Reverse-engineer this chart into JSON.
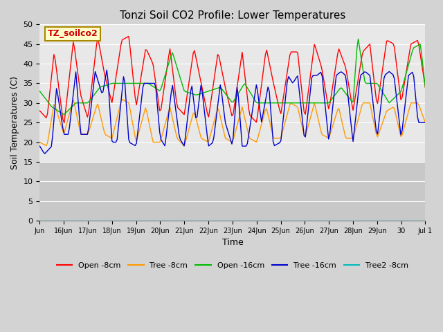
{
  "title": "Tonzi Soil CO2 Profile: Lower Temperatures",
  "xlabel": "Time",
  "ylabel": "Soil Temperatures (C)",
  "ylim": [
    0,
    50
  ],
  "yticks": [
    0,
    5,
    10,
    15,
    20,
    25,
    30,
    35,
    40,
    45,
    50
  ],
  "background_color": "#d3d3d3",
  "plot_bg_color": "#e8e8e8",
  "plot_bg_color2": "#c8c8c8",
  "text_box_label": "TZ_soilco2",
  "text_box_color": "#ffffcc",
  "text_box_text_color": "#cc0000",
  "legend_entries": [
    "Open -8cm",
    "Tree -8cm",
    "Open -16cm",
    "Tree -16cm",
    "Tree2 -8cm"
  ],
  "line_colors": [
    "#ff0000",
    "#ff9900",
    "#00bb00",
    "#0000cc",
    "#00bbbb"
  ],
  "x_tick_labels": [
    "Jun",
    "16Jun",
    "17Jun",
    "18Jun",
    "19Jun",
    "20Jun",
    "21Jun",
    "22Jun",
    "23Jun",
    "24Jun",
    "25Jun",
    "26Jun",
    "27Jun",
    "28Jun",
    "29Jun",
    "30",
    "Jul 1"
  ]
}
